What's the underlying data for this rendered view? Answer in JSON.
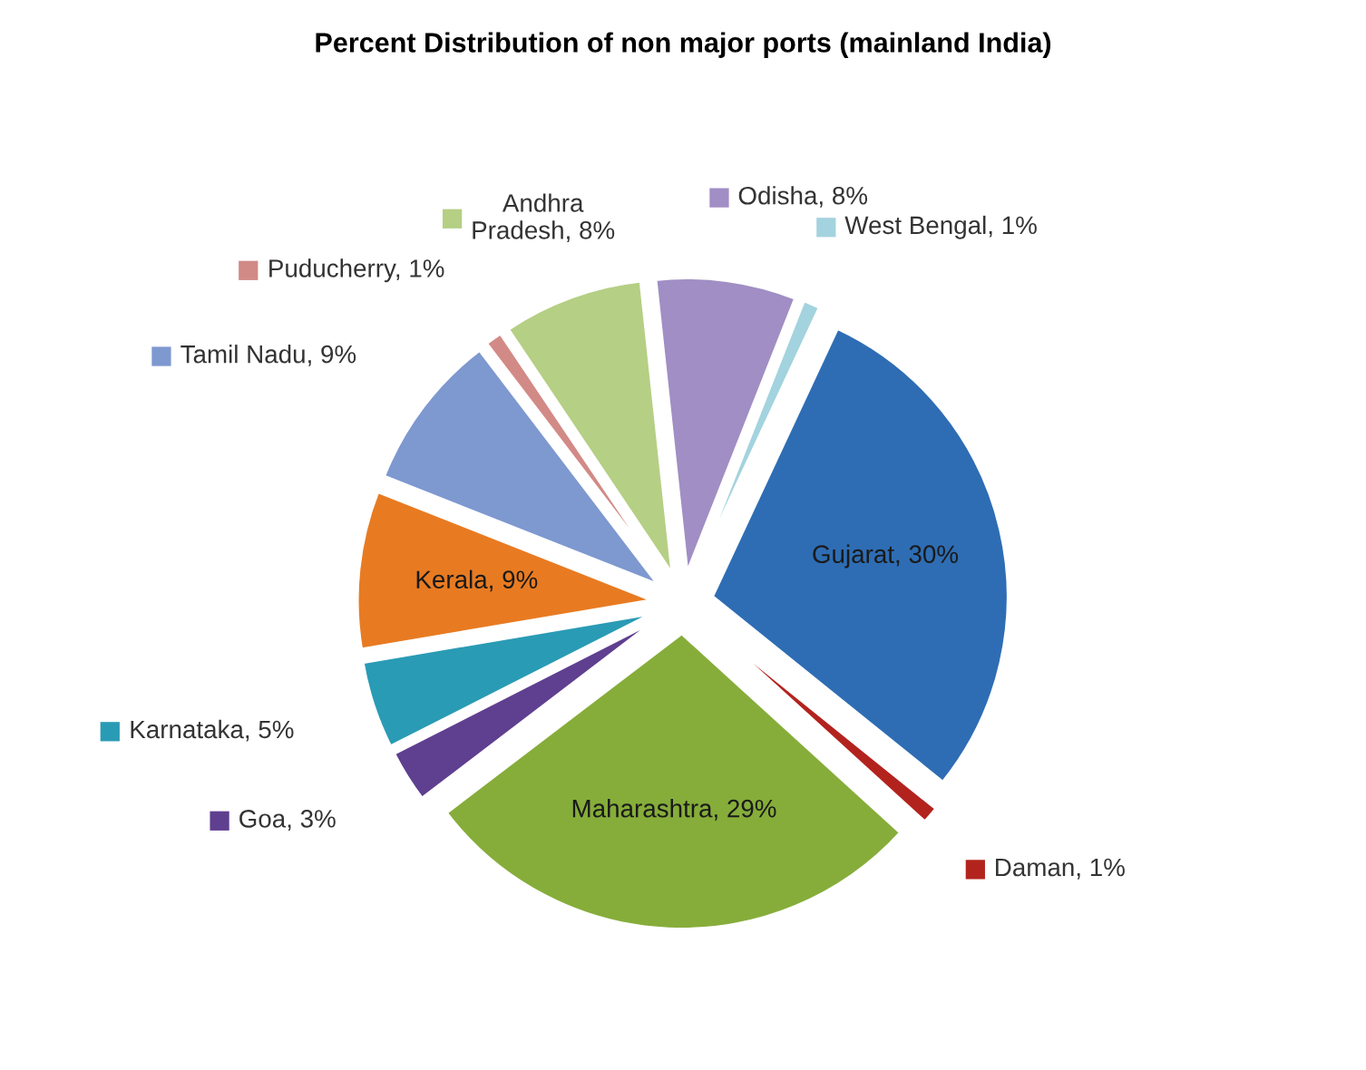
{
  "chart_data": {
    "type": "pie",
    "title": "Percent Distribution of non major ports (mainland India)",
    "categories": [
      "Gujarat",
      "Daman",
      "Maharashtra",
      "Goa",
      "Karnataka",
      "Kerala",
      "Tamil Nadu",
      "Puducherry",
      "Andhra Pradesh",
      "Odisha",
      "West Bengal"
    ],
    "legend": "left",
    "values": [
      30,
      1,
      29,
      3,
      5,
      9,
      9,
      1,
      8,
      8,
      1
    ],
    "value_labels": [
      "30%",
      "1%",
      "29%",
      "3%",
      "5%",
      "9%",
      "9%",
      "1%",
      "8%",
      "8%",
      "1%"
    ],
    "colors": [
      "#2e6db4",
      "#b3231e",
      "#86ad3a",
      "#5f3f8f",
      "#2a9bb5",
      "#e87b22",
      "#7e98d0",
      "#d28a86",
      "#b5cf84",
      "#a08ec4",
      "#a3d3de"
    ]
  }
}
